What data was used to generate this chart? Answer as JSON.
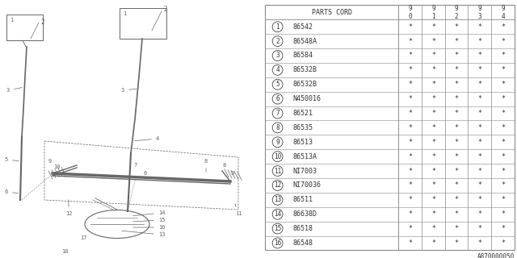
{
  "fig_code": "A870000050",
  "table_header_main": "PARTS CORD",
  "table_header_years": [
    "9\n0",
    "9\n1",
    "9\n2",
    "9\n3",
    "9\n4"
  ],
  "parts": [
    [
      "1",
      "86542"
    ],
    [
      "2",
      "86548A"
    ],
    [
      "3",
      "86584"
    ],
    [
      "4",
      "86532B"
    ],
    [
      "5",
      "86532B"
    ],
    [
      "6",
      "N450016"
    ],
    [
      "7",
      "86521"
    ],
    [
      "8",
      "86535"
    ],
    [
      "9",
      "86513"
    ],
    [
      "10",
      "86513A"
    ],
    [
      "11",
      "NI7003"
    ],
    [
      "12",
      "NI70036"
    ],
    [
      "13",
      "86511"
    ],
    [
      "14",
      "86638D"
    ],
    [
      "15",
      "86518"
    ],
    [
      "16",
      "86548"
    ]
  ],
  "star": "*",
  "bg_color": "#ffffff",
  "text_color": "#333333",
  "line_color": "#666666",
  "table_line_color": "#888888",
  "font_size": 6.0,
  "header_font_size": 6.0
}
